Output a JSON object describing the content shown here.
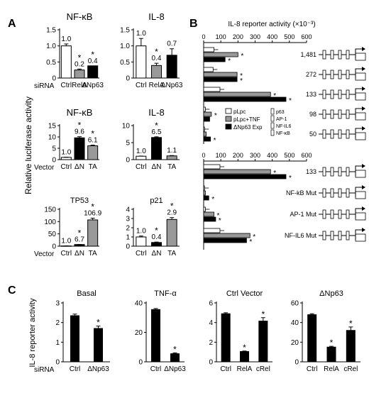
{
  "panels": {
    "A": "A",
    "B": "B",
    "C": "C"
  },
  "panelA": {
    "ylabel": "Relative luciferase activity",
    "row_labels": [
      "siRNA",
      "Vector",
      "Vector"
    ],
    "charts": [
      {
        "title": "NF-κB",
        "ylim": [
          0,
          1.5
        ],
        "ticks": [
          "0",
          "0.5",
          "1.0",
          "1.5"
        ],
        "tickvals": [
          0,
          0.5,
          1.0,
          1.5
        ],
        "categories": [
          "Ctrl",
          "RelA",
          "ΔNp63"
        ],
        "values": [
          1.0,
          0.25,
          0.38
        ],
        "errors": [
          0.06,
          0.03,
          0.0
        ],
        "labels": [
          "1.0",
          "0.2",
          "0.4"
        ],
        "stars": [
          false,
          true,
          true
        ],
        "colors": [
          "#ffffff",
          "#999999",
          "#000000"
        ]
      },
      {
        "title": "IL-8",
        "ylim": [
          0,
          1.5
        ],
        "ticks": [
          "0",
          "0.5",
          "1.0",
          "1.5"
        ],
        "tickvals": [
          0,
          0.5,
          1.0,
          1.5
        ],
        "categories": [
          "Ctrl",
          "RelA",
          "ΔNp63"
        ],
        "values": [
          1.0,
          0.39,
          0.71
        ],
        "errors": [
          0.23,
          0.07,
          0.2
        ],
        "labels": [
          "1.0",
          "0.4",
          "0.7"
        ],
        "stars": [
          false,
          true,
          false
        ],
        "colors": [
          "#ffffff",
          "#999999",
          "#000000"
        ]
      },
      {
        "title": "NF-κB",
        "ylim": [
          0,
          15
        ],
        "ticks": [
          "0",
          "5",
          "10",
          "15"
        ],
        "tickvals": [
          0,
          5,
          10,
          15
        ],
        "categories": [
          "Ctrl",
          "ΔN",
          "TA"
        ],
        "values": [
          1.0,
          9.6,
          6.1
        ],
        "errors": [
          0.1,
          0.5,
          0.3
        ],
        "labels": [
          "1.0",
          "9.6",
          "6.1"
        ],
        "stars": [
          false,
          true,
          true
        ],
        "colors": [
          "#ffffff",
          "#000000",
          "#999999"
        ]
      },
      {
        "title": "IL-8",
        "ylim": [
          0,
          10
        ],
        "ticks": [
          "0",
          "5",
          "10"
        ],
        "tickvals": [
          0,
          5,
          10
        ],
        "categories": [
          "Ctrl",
          "ΔN",
          "TA"
        ],
        "values": [
          1.0,
          6.5,
          1.1
        ],
        "errors": [
          0.05,
          0.2,
          0.1
        ],
        "labels": [
          "1.0",
          "6.5",
          "1.1"
        ],
        "stars": [
          false,
          true,
          false
        ],
        "colors": [
          "#ffffff",
          "#000000",
          "#999999"
        ]
      },
      {
        "title": "TP53",
        "ylim": [
          0,
          150
        ],
        "ticks": [
          "0",
          "50",
          "100",
          "150"
        ],
        "tickvals": [
          0,
          50,
          100,
          150
        ],
        "categories": [
          "Ctrl",
          "ΔN",
          "TA"
        ],
        "values": [
          1.0,
          6.7,
          106.9
        ],
        "errors": [
          0.3,
          0.5,
          7
        ],
        "labels": [
          "1.0",
          "6.7",
          "106.9"
        ],
        "stars": [
          false,
          true,
          true
        ],
        "colors": [
          "#ffffff",
          "#000000",
          "#999999"
        ]
      },
      {
        "title": "p21",
        "ylim": [
          0,
          4
        ],
        "ticks": [
          "0",
          "1",
          "2",
          "3",
          "4"
        ],
        "tickvals": [
          0,
          1,
          2,
          3,
          4
        ],
        "categories": [
          "Ctrl",
          "ΔN",
          "TA"
        ],
        "values": [
          1.0,
          0.4,
          2.9
        ],
        "errors": [
          0.1,
          0.05,
          0.2
        ],
        "labels": [
          "1.0",
          "0.4",
          "2.9"
        ],
        "stars": [
          false,
          true,
          true
        ],
        "colors": [
          "#ffffff",
          "#000000",
          "#999999"
        ]
      }
    ]
  },
  "panelB": {
    "title": "IL-8 reporter activity (×10⁻³)",
    "ticks": [
      "0",
      "100",
      "200",
      "300",
      "400",
      "500",
      "600"
    ],
    "tickvals": [
      0,
      100,
      200,
      300,
      400,
      500,
      600
    ],
    "legend": [
      "pLpc",
      "pLpc+TNF",
      "ΔNp63 Exp"
    ],
    "element_legend": [
      "p63",
      "AP-1",
      "NF-IL6",
      "NF-κB"
    ],
    "top_constructs": [
      {
        "label": "1,481",
        "values": [
          60,
          200,
          125
        ],
        "stars": [
          false,
          true,
          true
        ]
      },
      {
        "label": "272",
        "values": [
          55,
          195,
          195
        ],
        "stars": [
          false,
          true,
          true
        ]
      },
      {
        "label": "133",
        "values": [
          95,
          390,
          480
        ],
        "stars": [
          false,
          true,
          true
        ]
      },
      {
        "label": "98",
        "values": [
          10,
          45,
          35
        ],
        "stars": [
          false,
          true,
          false
        ]
      },
      {
        "label": "50",
        "values": [
          5,
          15,
          40
        ],
        "stars": [
          false,
          false,
          true
        ]
      }
    ],
    "bottom_constructs": [
      {
        "label": "133",
        "values": [
          95,
          390,
          480
        ],
        "stars": [
          false,
          true,
          true
        ]
      },
      {
        "label": "NF-kB Mut",
        "values": [
          5,
          10,
          30
        ],
        "stars": [
          false,
          false,
          true
        ]
      },
      {
        "label": "AP-1 Mut",
        "values": [
          10,
          60,
          70
        ],
        "stars": [
          false,
          true,
          true
        ]
      },
      {
        "label": "NF-IL6 Mut",
        "values": [
          95,
          270,
          250
        ],
        "stars": [
          false,
          true,
          true
        ]
      }
    ]
  },
  "panelC": {
    "ylabel": "IL-8 reporter activity",
    "row_label": "siRNA",
    "charts": [
      {
        "title": "Basal",
        "ylim": [
          0,
          3
        ],
        "ticks": [
          "0",
          "1",
          "2",
          "3"
        ],
        "tickvals": [
          0,
          1,
          2,
          3
        ],
        "categories": [
          "Ctrl",
          "ΔNp63"
        ],
        "values": [
          2.35,
          1.7
        ],
        "errors": [
          0.08,
          0.12
        ],
        "stars": [
          false,
          true
        ]
      },
      {
        "title": "TNF-α",
        "ylim": [
          0,
          40
        ],
        "ticks": [
          "0",
          "20",
          "40"
        ],
        "tickvals": [
          0,
          20,
          40
        ],
        "categories": [
          "Ctrl",
          "ΔNp63"
        ],
        "values": [
          35.5,
          5.5
        ],
        "errors": [
          0.7,
          0.6
        ],
        "stars": [
          false,
          true
        ]
      },
      {
        "title": "Ctrl Vector",
        "ylim": [
          0,
          6
        ],
        "ticks": [
          "0",
          "2",
          "4",
          "6"
        ],
        "tickvals": [
          0,
          2,
          4,
          6
        ],
        "categories": [
          "Ctrl",
          "RelA",
          "cRel"
        ],
        "values": [
          4.9,
          1.05,
          4.15
        ],
        "errors": [
          0.1,
          0.05,
          0.35
        ],
        "stars": [
          false,
          true,
          true
        ]
      },
      {
        "title": "ΔNp63",
        "ylim": [
          0,
          60
        ],
        "ticks": [
          "0",
          "20",
          "40",
          "60"
        ],
        "tickvals": [
          0,
          20,
          40,
          60
        ],
        "categories": [
          "Ctrl",
          "RelA",
          "cRel"
        ],
        "values": [
          48,
          15,
          32
        ],
        "errors": [
          1,
          0.8,
          3.5
        ],
        "stars": [
          false,
          true,
          true
        ]
      }
    ]
  }
}
